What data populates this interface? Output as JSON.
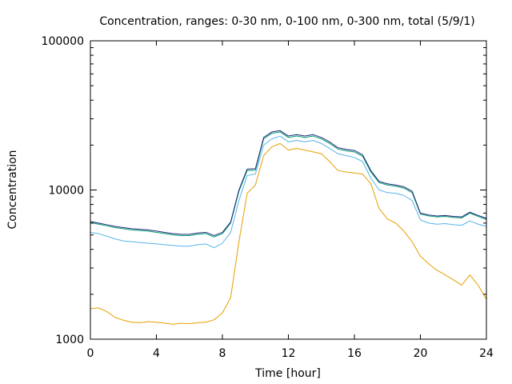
{
  "chart_data": {
    "type": "line",
    "title": "Concentration, ranges: 0-30 nm, 0-100 nm, 0-300 nm, total (5/9/1)",
    "xlabel": "Time [hour]",
    "ylabel": "Concentration",
    "xlim": [
      0,
      24
    ],
    "ylim": [
      1000,
      100000
    ],
    "yscale": "log",
    "xticks": [
      0,
      4,
      8,
      12,
      16,
      20,
      24
    ],
    "yticks": [
      1000,
      10000,
      100000
    ],
    "ytick_labels": [
      "1000",
      "10000",
      "100000"
    ],
    "grid": false,
    "legend": "none",
    "series": [
      {
        "name": "0-30 nm",
        "color": "#e69f00",
        "x": [
          0,
          0.5,
          1,
          1.5,
          2,
          2.5,
          3,
          3.5,
          4,
          4.5,
          5,
          5.5,
          6,
          6.5,
          7,
          7.5,
          8,
          8.5,
          9,
          9.5,
          10,
          10.5,
          11,
          11.5,
          12,
          12.5,
          13,
          13.5,
          14,
          14.5,
          15,
          15.5,
          16,
          16.5,
          17,
          17.5,
          18,
          18.5,
          19,
          19.5,
          20,
          20.5,
          21,
          21.5,
          22,
          22.5,
          23,
          23.5,
          24
        ],
        "values": [
          1600,
          1620,
          1530,
          1400,
          1340,
          1300,
          1290,
          1310,
          1300,
          1280,
          1260,
          1280,
          1270,
          1290,
          1300,
          1350,
          1500,
          1900,
          4500,
          9500,
          10800,
          17000,
          19500,
          20500,
          18500,
          19000,
          18500,
          18000,
          17500,
          15500,
          13500,
          13200,
          13000,
          12800,
          11000,
          7500,
          6400,
          6000,
          5300,
          4500,
          3600,
          3200,
          2900,
          2700,
          2500,
          2300,
          2700,
          2300,
          1850
        ]
      },
      {
        "name": "0-100 nm",
        "color": "#56b4e9",
        "x": [
          0,
          0.5,
          1,
          1.5,
          2,
          2.5,
          3,
          3.5,
          4,
          4.5,
          5,
          5.5,
          6,
          6.5,
          7,
          7.5,
          8,
          8.5,
          9,
          9.5,
          10,
          10.5,
          11,
          11.5,
          12,
          12.5,
          13,
          13.5,
          14,
          14.5,
          15,
          15.5,
          16,
          16.5,
          17,
          17.5,
          18,
          18.5,
          19,
          19.5,
          20,
          20.5,
          21,
          21.5,
          22,
          22.5,
          23,
          23.5,
          24
        ],
        "values": [
          5200,
          5100,
          4900,
          4700,
          4550,
          4500,
          4450,
          4400,
          4350,
          4300,
          4250,
          4200,
          4200,
          4300,
          4350,
          4100,
          4400,
          5200,
          8500,
          12500,
          12800,
          20000,
          22000,
          23000,
          21000,
          21500,
          21000,
          21500,
          20500,
          19000,
          17500,
          17000,
          16500,
          15500,
          12000,
          10000,
          9600,
          9500,
          9200,
          8500,
          6300,
          6000,
          5900,
          5950,
          5850,
          5800,
          6200,
          5900,
          5700
        ]
      },
      {
        "name": "0-300 nm",
        "color": "#009e73",
        "x": [
          0,
          0.5,
          1,
          1.5,
          2,
          2.5,
          3,
          3.5,
          4,
          4.5,
          5,
          5.5,
          6,
          6.5,
          7,
          7.5,
          8,
          8.5,
          9,
          9.5,
          10,
          10.5,
          11,
          11.5,
          12,
          12.5,
          13,
          13.5,
          14,
          14.5,
          15,
          15.5,
          16,
          16.5,
          17,
          17.5,
          18,
          18.5,
          19,
          19.5,
          20,
          20.5,
          21,
          21.5,
          22,
          22.5,
          23,
          23.5,
          24
        ],
        "values": [
          6050,
          5900,
          5750,
          5600,
          5500,
          5400,
          5350,
          5300,
          5200,
          5100,
          5000,
          4950,
          4950,
          5050,
          5100,
          4850,
          5100,
          6000,
          9800,
          13500,
          13600,
          22000,
          24000,
          24500,
          22500,
          23000,
          22500,
          23000,
          22000,
          20500,
          18800,
          18300,
          18000,
          16800,
          13200,
          11200,
          10800,
          10600,
          10300,
          9600,
          6900,
          6700,
          6600,
          6650,
          6550,
          6500,
          7000,
          6650,
          6350
        ]
      },
      {
        "name": "total",
        "color": "#1f2a7a",
        "x": [
          0,
          0.5,
          1,
          1.5,
          2,
          2.5,
          3,
          3.5,
          4,
          4.5,
          5,
          5.5,
          6,
          6.5,
          7,
          7.5,
          8,
          8.5,
          9,
          9.5,
          10,
          10.5,
          11,
          11.5,
          12,
          12.5,
          13,
          13.5,
          14,
          14.5,
          15,
          15.5,
          16,
          16.5,
          17,
          17.5,
          18,
          18.5,
          19,
          19.5,
          20,
          20.5,
          21,
          21.5,
          22,
          22.5,
          23,
          23.5,
          24
        ],
        "values": [
          6150,
          6000,
          5850,
          5700,
          5600,
          5500,
          5450,
          5400,
          5300,
          5200,
          5100,
          5050,
          5050,
          5150,
          5200,
          4950,
          5200,
          6100,
          10000,
          13800,
          13900,
          22500,
          24500,
          25000,
          23000,
          23500,
          23000,
          23500,
          22500,
          21000,
          19200,
          18700,
          18400,
          17200,
          13500,
          11400,
          11000,
          10800,
          10500,
          9800,
          7000,
          6800,
          6700,
          6750,
          6650,
          6600,
          7100,
          6750,
          6450
        ]
      }
    ]
  }
}
